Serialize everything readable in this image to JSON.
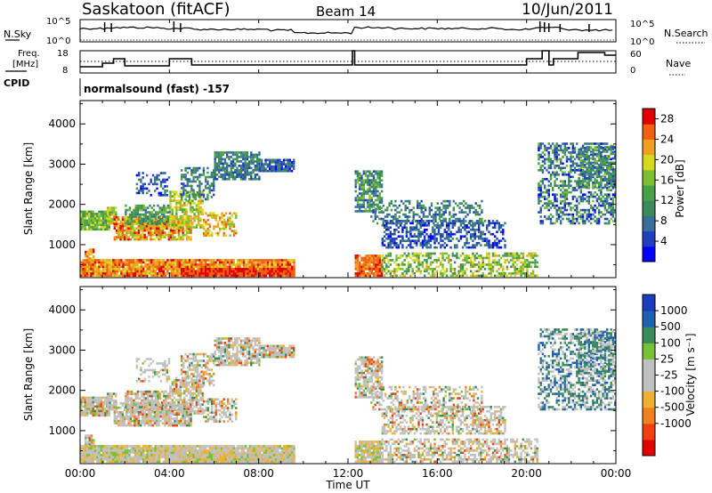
{
  "header": {
    "station": "Saskatoon (fitACF)",
    "beam": "Beam 14",
    "date": "10/Jun/2011"
  },
  "panels": {
    "nsky": {
      "label": "N.Sky",
      "right_label": "N.Search",
      "left_ticks": [
        "10^5",
        "10^0"
      ],
      "right_ticks": [
        "10^5",
        "10^0"
      ]
    },
    "freq": {
      "label_line1": "Freq.",
      "label_line2": "[MHz]",
      "right_label": "Nave",
      "left_ticks": [
        "18",
        "8"
      ],
      "right_ticks": [
        "60",
        "0"
      ]
    },
    "cpid": {
      "label": "CPID",
      "text": "normalsound (fast) -157"
    }
  },
  "colors": {
    "power_scale": [
      "#0000ff",
      "#2040c0",
      "#3a6e9a",
      "#3c8a5a",
      "#48a048",
      "#7cc030",
      "#d8d820",
      "#f0a020",
      "#f06010",
      "#e00000"
    ],
    "velocity_scale": [
      "#e00000",
      "#f04010",
      "#f08020",
      "#f0b030",
      "#c0c0c0",
      "#c0c0c0",
      "#78c038",
      "#3a8a5a",
      "#2060b0",
      "#1a3cc0"
    ]
  },
  "chart_data": [
    {
      "type": "heatmap",
      "name": "power",
      "ylabel": "Slant Range [km]",
      "yticks": [
        1000,
        2000,
        3000,
        4000
      ],
      "ylim": [
        180,
        4580
      ],
      "xlim": [
        0,
        24
      ],
      "colorbar_label": "Power [dB]",
      "colorbar_ticks": [
        "4",
        "8",
        "12",
        "16",
        "20",
        "24",
        "28"
      ],
      "colorbar_range": [
        0,
        30
      ]
    },
    {
      "type": "heatmap",
      "name": "velocity",
      "ylabel": "Slant Range [km]",
      "yticks": [
        1000,
        2000,
        3000,
        4000
      ],
      "ylim": [
        180,
        4580
      ],
      "xlim": [
        0,
        24
      ],
      "colorbar_label": "Velocity [m s⁻¹]",
      "colorbar_ticks": [
        "1000",
        "500",
        "100",
        "25",
        "-25",
        "-100",
        "-500",
        "-1000"
      ]
    }
  ],
  "xaxis": {
    "label": "Time UT",
    "ticks": [
      "00:00",
      "04:00",
      "08:00",
      "12:00",
      "16:00",
      "20:00",
      "00:00"
    ]
  }
}
